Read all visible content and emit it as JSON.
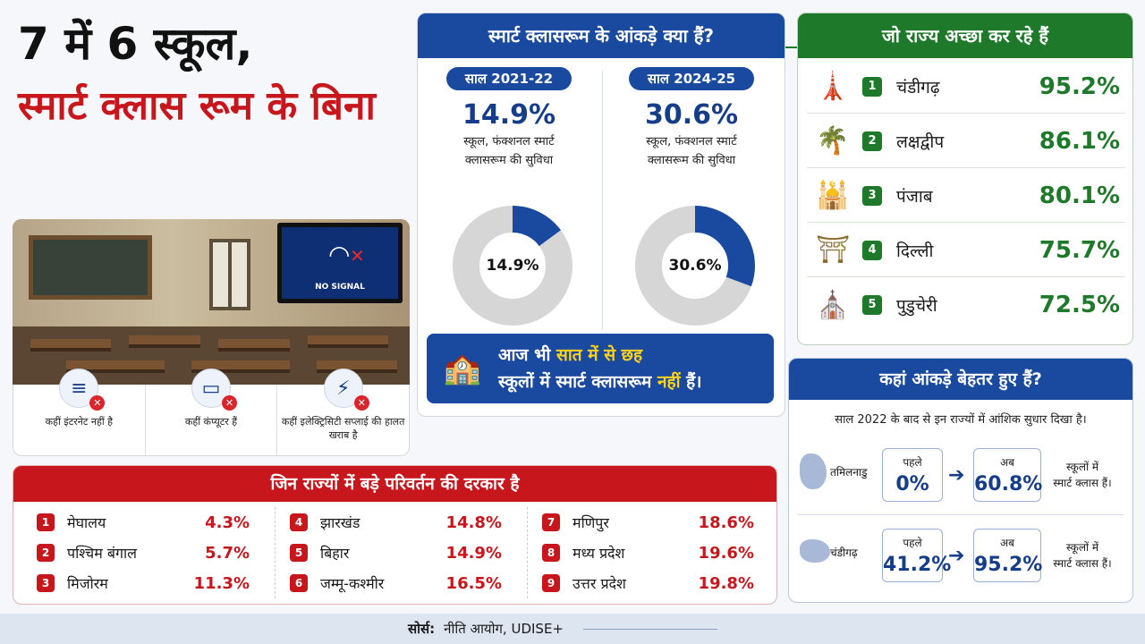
{
  "headline": {
    "line1": "7 में 6 स्कूल,",
    "line2": "स्मार्ट क्लास रूम के बिना"
  },
  "photo": {
    "tv_label": "NO SIGNAL",
    "tv_icon": "wifi-off-icon"
  },
  "issues": [
    {
      "icon": "wifi-icon",
      "text": "कहीं इंटरनेट नहीं है"
    },
    {
      "icon": "computer-monitor-icon",
      "text": "कहीं कंप्यूटर हैं"
    },
    {
      "icon": "lightning-icon",
      "text": "कहीं इलेक्ट्रिसिटी सप्लाई की हालत खराब है"
    }
  ],
  "smart": {
    "title": "स्मार्ट क्लासरूम के आंकड़े क्या हैं?",
    "years": [
      {
        "label": "साल 2021-22",
        "pct": "14.9%",
        "desc_line1": "स्कूल, फंक्शनल स्मार्ट",
        "desc_line2": "क्लासरूम की सुविधा"
      },
      {
        "label": "साल 2024-25",
        "pct": "30.6%",
        "desc_line1": "स्कूल, फंक्शनल स्मार्ट",
        "desc_line2": "क्लासरूम की सुविधा"
      }
    ],
    "callout_line1_a": "आज भी ",
    "callout_line1_b": "सात में से छह",
    "callout_line2_a": "स्कूलों में स्मार्ट क्लासरूम ",
    "callout_line2_b": "नहीं",
    "callout_line2_c": " हैं।",
    "callout_icon": "school-building-icon"
  },
  "chart_data": [
    {
      "type": "pie",
      "categories": [
        "smart classroom",
        "rest"
      ],
      "values": [
        14.9,
        85.1
      ],
      "title": "साल 2021-22",
      "colors": [
        "#1a4aa0",
        "#d6d6d6"
      ]
    },
    {
      "type": "pie",
      "categories": [
        "smart classroom",
        "rest"
      ],
      "values": [
        30.6,
        69.4
      ],
      "title": "साल 2024-25",
      "colors": [
        "#1a4aa0",
        "#d6d6d6"
      ]
    },
    {
      "type": "table",
      "title": "जो राज्य अच्छा कर रहे हैं",
      "rows": [
        {
          "rank": "1",
          "name": "चंडीगढ़",
          "value": "95.2%",
          "icon": "tower-monument-icon"
        },
        {
          "rank": "2",
          "name": "लक्षद्वीप",
          "value": "86.1%",
          "icon": "palm-island-icon"
        },
        {
          "rank": "3",
          "name": "पंजाब",
          "value": "80.1%",
          "icon": "golden-temple-icon"
        },
        {
          "rank": "4",
          "name": "दिल्ली",
          "value": "75.7%",
          "icon": "india-gate-icon"
        },
        {
          "rank": "5",
          "name": "पुडुचेरी",
          "value": "72.5%",
          "icon": "church-dome-icon"
        }
      ]
    },
    {
      "type": "table",
      "title": "जिन राज्यों में बड़े परिवर्तन की दरकार है",
      "rows": [
        {
          "rank": "1",
          "name": "मेघालय",
          "value": "4.3%"
        },
        {
          "rank": "2",
          "name": "पश्चिम बंगाल",
          "value": "5.7%"
        },
        {
          "rank": "3",
          "name": "मिजोरम",
          "value": "11.3%"
        },
        {
          "rank": "4",
          "name": "झारखंड",
          "value": "14.8%"
        },
        {
          "rank": "5",
          "name": "बिहार",
          "value": "14.9%"
        },
        {
          "rank": "6",
          "name": "जम्मू-कश्मीर",
          "value": "16.5%"
        },
        {
          "rank": "7",
          "name": "मणिपुर",
          "value": "18.6%"
        },
        {
          "rank": "8",
          "name": "मध्य प्रदेश",
          "value": "19.6%"
        },
        {
          "rank": "9",
          "name": "उत्तर प्रदेश",
          "value": "19.8%"
        }
      ]
    }
  ],
  "improved": {
    "title": "कहां आंकड़े बेहतर हुए हैं?",
    "subtitle": "साल 2022 के बाद से इन राज्यों में आंशिक सुधार दिखा है।",
    "rows": [
      {
        "state": "तमिलनाडु",
        "before_label": "पहले",
        "before": "0%",
        "after_label": "अब",
        "after": "60.8%",
        "tail_line1": "स्कूलों में",
        "tail_line2": "स्मार्ट क्लास हैं।"
      },
      {
        "state": "चंडीगढ़",
        "before_label": "पहले",
        "before": "41.2%",
        "after_label": "अब",
        "after": "95.2%",
        "tail_line1": "स्कूलों में",
        "tail_line2": "स्मार्ट क्लास हैं।"
      }
    ]
  },
  "footer": {
    "label": "सोर्स:",
    "text": "नीति आयोग, UDISE+"
  }
}
